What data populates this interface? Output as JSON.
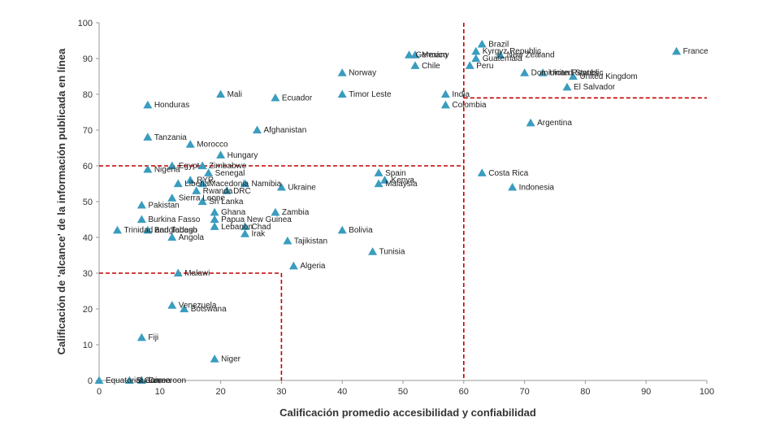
{
  "chart_data": {
    "type": "scatter",
    "title": "",
    "xlabel": "Calificación promedio accesibilidad y confiabilidad",
    "ylabel": "Calificación de 'alcance' de la información publicada en línea",
    "xlim": [
      0,
      100
    ],
    "ylim": [
      0,
      100
    ],
    "xticks": [
      "0",
      "10",
      "20",
      "30",
      "40",
      "50",
      "60",
      "70",
      "80",
      "90",
      "100"
    ],
    "yticks": [
      "0",
      "10",
      "20",
      "30",
      "40",
      "50",
      "60",
      "70",
      "80",
      "90",
      "100"
    ],
    "threshold_lines": [
      {
        "orientation": "vertical",
        "x": 60,
        "y_from": 0,
        "y_to": 100
      },
      {
        "orientation": "horizontal",
        "y": 60,
        "x_from": 0,
        "x_to": 60
      },
      {
        "orientation": "horizontal",
        "y": 79,
        "x_from": 60,
        "x_to": 100
      },
      {
        "orientation": "horizontal",
        "y": 30,
        "x_from": 0,
        "x_to": 30
      },
      {
        "orientation": "vertical",
        "x": 30,
        "y_from": 0,
        "y_to": 30
      }
    ],
    "points": [
      {
        "label": "Brazil",
        "x": 63,
        "y": 94
      },
      {
        "label": "Kyrgyz Republic",
        "x": 62,
        "y": 92
      },
      {
        "label": "Guatemala",
        "x": 62,
        "y": 90
      },
      {
        "label": "New Zealand",
        "x": 66,
        "y": 91
      },
      {
        "label": "Peru",
        "x": 61,
        "y": 88
      },
      {
        "label": "Germany",
        "x": 51,
        "y": 91
      },
      {
        "label": "Mexico",
        "x": 52,
        "y": 91
      },
      {
        "label": "Chile",
        "x": 52,
        "y": 88
      },
      {
        "label": "France",
        "x": 95,
        "y": 92
      },
      {
        "label": "United States",
        "x": 73,
        "y": 86
      },
      {
        "label": "Dominican Republic",
        "x": 70,
        "y": 86
      },
      {
        "label": "United Kingdom",
        "x": 78,
        "y": 85
      },
      {
        "label": "El Salvador",
        "x": 77,
        "y": 82
      },
      {
        "label": "Norway",
        "x": 40,
        "y": 86
      },
      {
        "label": "India",
        "x": 57,
        "y": 80
      },
      {
        "label": "Colombia",
        "x": 57,
        "y": 77
      },
      {
        "label": "Argentina",
        "x": 71,
        "y": 72
      },
      {
        "label": "Mali",
        "x": 20,
        "y": 80
      },
      {
        "label": "Ecuador",
        "x": 29,
        "y": 79
      },
      {
        "label": "Timor Leste",
        "x": 40,
        "y": 80
      },
      {
        "label": "Honduras",
        "x": 8,
        "y": 77
      },
      {
        "label": "Afghanistan",
        "x": 26,
        "y": 70
      },
      {
        "label": "Tanzania",
        "x": 8,
        "y": 68
      },
      {
        "label": "Morocco",
        "x": 15,
        "y": 66
      },
      {
        "label": "Hungary",
        "x": 20,
        "y": 63
      },
      {
        "label": "Egypt",
        "x": 12,
        "y": 60
      },
      {
        "label": "Zimbabwe",
        "x": 17,
        "y": 60
      },
      {
        "label": "Nigeria",
        "x": 8,
        "y": 59
      },
      {
        "label": "Senegal",
        "x": 18,
        "y": 58
      },
      {
        "label": "Spain",
        "x": 46,
        "y": 58
      },
      {
        "label": "Costa Rica",
        "x": 63,
        "y": 58
      },
      {
        "label": "Namibia",
        "x": 24,
        "y": 55
      },
      {
        "label": "Kenya",
        "x": 47,
        "y": 56
      },
      {
        "label": "RYR",
        "x": 15,
        "y": 56
      },
      {
        "label": "Macedonia",
        "x": 17,
        "y": 55
      },
      {
        "label": "Liberia",
        "x": 13,
        "y": 55
      },
      {
        "label": "Malaysia",
        "x": 46,
        "y": 55
      },
      {
        "label": "Ukraine",
        "x": 30,
        "y": 54
      },
      {
        "label": "Indonesia",
        "x": 68,
        "y": 54
      },
      {
        "label": "DRC",
        "x": 21,
        "y": 53
      },
      {
        "label": "Rwanda",
        "x": 16,
        "y": 53
      },
      {
        "label": "Sierra Leone",
        "x": 12,
        "y": 51
      },
      {
        "label": "Sri Lanka",
        "x": 17,
        "y": 50
      },
      {
        "label": "Pakistan",
        "x": 7,
        "y": 49
      },
      {
        "label": "Ghana",
        "x": 19,
        "y": 47
      },
      {
        "label": "Zambia",
        "x": 29,
        "y": 47
      },
      {
        "label": "Papua New Guinea",
        "x": 19,
        "y": 45
      },
      {
        "label": "Burkina Fasso",
        "x": 7,
        "y": 45
      },
      {
        "label": "Chad",
        "x": 24,
        "y": 43
      },
      {
        "label": "Lebanon",
        "x": 19,
        "y": 43
      },
      {
        "label": "Bolivia",
        "x": 40,
        "y": 42
      },
      {
        "label": "Bangladesh",
        "x": 8,
        "y": 42
      },
      {
        "label": "Trinidad and Tobago",
        "x": 3,
        "y": 42
      },
      {
        "label": "Irak",
        "x": 24,
        "y": 41
      },
      {
        "label": "Angola",
        "x": 12,
        "y": 40
      },
      {
        "label": "Tajikistan",
        "x": 31,
        "y": 39
      },
      {
        "label": "Tunisia",
        "x": 45,
        "y": 36
      },
      {
        "label": "Algeria",
        "x": 32,
        "y": 32
      },
      {
        "label": "Malawi",
        "x": 13,
        "y": 30
      },
      {
        "label": "Venezuela",
        "x": 12,
        "y": 21
      },
      {
        "label": "Botswana",
        "x": 14,
        "y": 20
      },
      {
        "label": "Fiji",
        "x": 7,
        "y": 12
      },
      {
        "label": "Niger",
        "x": 19,
        "y": 6
      },
      {
        "label": "Equatorial Guinea",
        "x": 0,
        "y": 0
      },
      {
        "label": "Sudan",
        "x": 5,
        "y": 0
      },
      {
        "label": "Cameroon",
        "x": 7,
        "y": 0
      }
    ]
  }
}
